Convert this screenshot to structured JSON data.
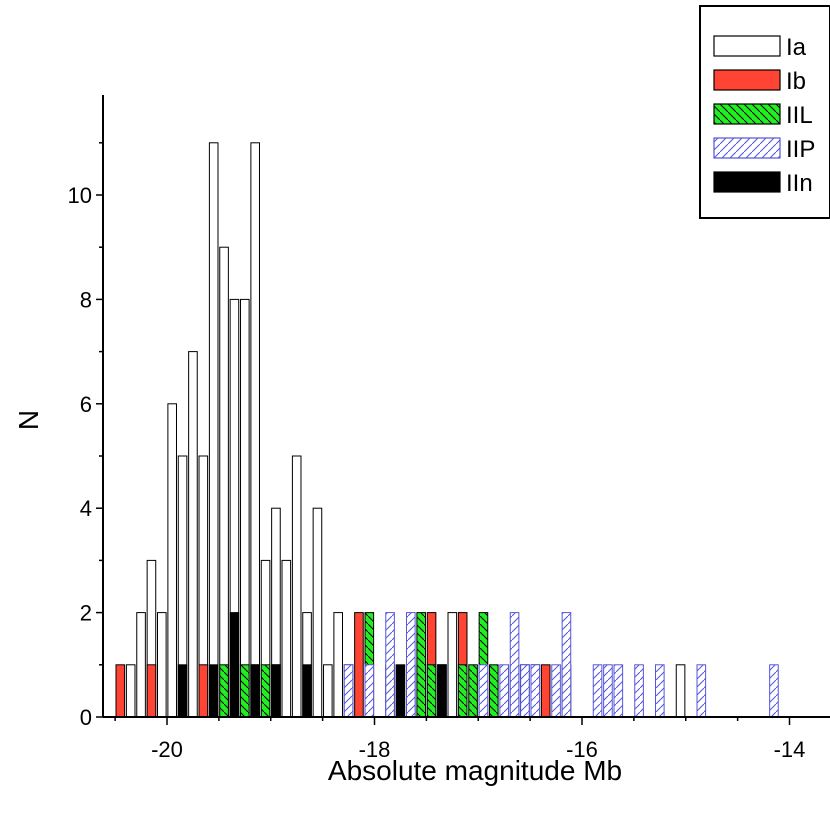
{
  "chart_data": {
    "type": "bar",
    "chart_subtype": "stacked histogram",
    "xlabel": "Absolute magnitude Mb",
    "ylabel": "N",
    "xlim": [
      -20.6,
      -13.6
    ],
    "ylim": [
      0,
      11.6
    ],
    "xticks": [
      -20,
      -18,
      -16,
      -14
    ],
    "yticks": [
      0,
      2,
      4,
      6,
      8,
      10
    ],
    "legend_position": "top-right",
    "grid": false,
    "bin_width": 0.1,
    "series": [
      {
        "name": "Ia",
        "color": "#ffffff",
        "pattern": "none",
        "bins": [
          {
            "x": -20.35,
            "value": 1
          },
          {
            "x": -20.25,
            "value": 2
          },
          {
            "x": -20.15,
            "value": 3
          },
          {
            "x": -20.05,
            "value": 2
          },
          {
            "x": -19.95,
            "value": 6
          },
          {
            "x": -19.85,
            "value": 5
          },
          {
            "x": -19.75,
            "value": 7
          },
          {
            "x": -19.65,
            "value": 5
          },
          {
            "x": -19.55,
            "value": 11
          },
          {
            "x": -19.45,
            "value": 9
          },
          {
            "x": -19.35,
            "value": 8
          },
          {
            "x": -19.25,
            "value": 8
          },
          {
            "x": -19.15,
            "value": 11
          },
          {
            "x": -19.05,
            "value": 3
          },
          {
            "x": -18.95,
            "value": 4
          },
          {
            "x": -18.85,
            "value": 3
          },
          {
            "x": -18.75,
            "value": 5
          },
          {
            "x": -18.65,
            "value": 2
          },
          {
            "x": -18.55,
            "value": 4
          },
          {
            "x": -18.45,
            "value": 1
          },
          {
            "x": -18.35,
            "value": 2
          },
          {
            "x": -18.25,
            "value": 1
          },
          {
            "x": -17.25,
            "value": 2
          },
          {
            "x": -15.05,
            "value": 1
          }
        ]
      },
      {
        "name": "Ib",
        "color": "#ff4433",
        "pattern": "none",
        "bins": [
          {
            "x": -20.45,
            "value": 1
          },
          {
            "x": -20.15,
            "value": 1
          },
          {
            "x": -19.65,
            "value": 1
          },
          {
            "x": -18.15,
            "value": 2
          },
          {
            "x": -17.65,
            "value": 1
          },
          {
            "x": -17.45,
            "value": 2
          },
          {
            "x": -17.15,
            "value": 2
          },
          {
            "x": -16.65,
            "value": 1
          },
          {
            "x": -16.55,
            "value": 1
          },
          {
            "x": -16.45,
            "value": 1
          },
          {
            "x": -16.35,
            "value": 1
          },
          {
            "x": -16.15,
            "value": 1
          }
        ]
      },
      {
        "name": "IIL",
        "color": "#22ee22",
        "pattern": "backslash",
        "bins": [
          {
            "x": -19.45,
            "value": 1
          },
          {
            "x": -19.35,
            "value": 1
          },
          {
            "x": -19.25,
            "value": 1
          },
          {
            "x": -19.15,
            "value": 1
          },
          {
            "x": -19.05,
            "value": 1
          },
          {
            "x": -18.95,
            "value": 1
          },
          {
            "x": -18.05,
            "value": 2
          },
          {
            "x": -17.85,
            "value": 1
          },
          {
            "x": -17.55,
            "value": 2
          },
          {
            "x": -17.45,
            "value": 1
          },
          {
            "x": -17.35,
            "value": 1
          },
          {
            "x": -17.15,
            "value": 1
          },
          {
            "x": -17.05,
            "value": 1
          },
          {
            "x": -16.95,
            "value": 2
          },
          {
            "x": -16.85,
            "value": 1
          }
        ]
      },
      {
        "name": "IIP",
        "color": "#5555dd",
        "pattern": "slash",
        "bins": [
          {
            "x": -18.25,
            "value": 1
          },
          {
            "x": -18.05,
            "value": 1
          },
          {
            "x": -17.85,
            "value": 2
          },
          {
            "x": -17.65,
            "value": 2
          },
          {
            "x": -17.35,
            "value": 1
          },
          {
            "x": -16.95,
            "value": 1
          },
          {
            "x": -16.75,
            "value": 1
          },
          {
            "x": -16.65,
            "value": 2
          },
          {
            "x": -16.55,
            "value": 1
          },
          {
            "x": -16.45,
            "value": 1
          },
          {
            "x": -16.25,
            "value": 1
          },
          {
            "x": -16.15,
            "value": 2
          },
          {
            "x": -15.85,
            "value": 1
          },
          {
            "x": -15.75,
            "value": 1
          },
          {
            "x": -15.65,
            "value": 1
          },
          {
            "x": -15.45,
            "value": 1
          },
          {
            "x": -15.25,
            "value": 1
          },
          {
            "x": -14.85,
            "value": 1
          },
          {
            "x": -14.15,
            "value": 1
          }
        ]
      },
      {
        "name": "IIn",
        "color": "#000000",
        "pattern": "none",
        "bins": [
          {
            "x": -19.85,
            "value": 1
          },
          {
            "x": -19.55,
            "value": 1
          },
          {
            "x": -19.35,
            "value": 2
          },
          {
            "x": -19.15,
            "value": 1
          },
          {
            "x": -18.95,
            "value": 1
          },
          {
            "x": -18.65,
            "value": 1
          },
          {
            "x": -17.75,
            "value": 1
          },
          {
            "x": -17.35,
            "value": 1
          }
        ]
      }
    ]
  }
}
